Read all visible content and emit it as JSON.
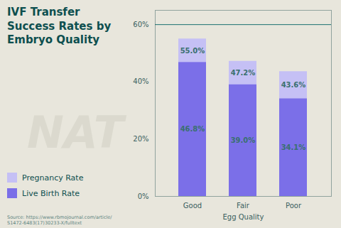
{
  "chart_data": {
    "type": "bar",
    "title": "IVF Transfer\nSuccess Rates by\nEmbryo Quality",
    "xlabel": "Egg Quality",
    "categories": [
      "Good",
      "Fair",
      "Poor"
    ],
    "series": [
      {
        "name": "Pregnancy Rate",
        "color": "#C5C0F5",
        "values": [
          55.0,
          47.2,
          43.6
        ],
        "value_labels": [
          "55.0%",
          "47.2%",
          "43.6%"
        ]
      },
      {
        "name": "Live Birth Rate",
        "color": "#7B6FE8",
        "values": [
          46.8,
          39.0,
          34.1
        ],
        "value_labels": [
          "46.8%",
          "39.0%",
          "34.1%"
        ]
      }
    ],
    "stacked": false,
    "data_labels": true,
    "ylim": [
      0,
      65
    ],
    "yticks": [
      {
        "value": 0,
        "label": "0%"
      },
      {
        "value": 20,
        "label": "20%"
      },
      {
        "value": 40,
        "label": "40%"
      },
      {
        "value": 60,
        "label": "60%"
      }
    ],
    "grid": false,
    "legend": "lower left",
    "reference_line": {
      "y": 60,
      "color": "#1A7070"
    },
    "watermark": "NAT",
    "source": "Source: https://www.rbmojournal.com/article/\nS1472-6483(17)30233-X/fulltext"
  }
}
